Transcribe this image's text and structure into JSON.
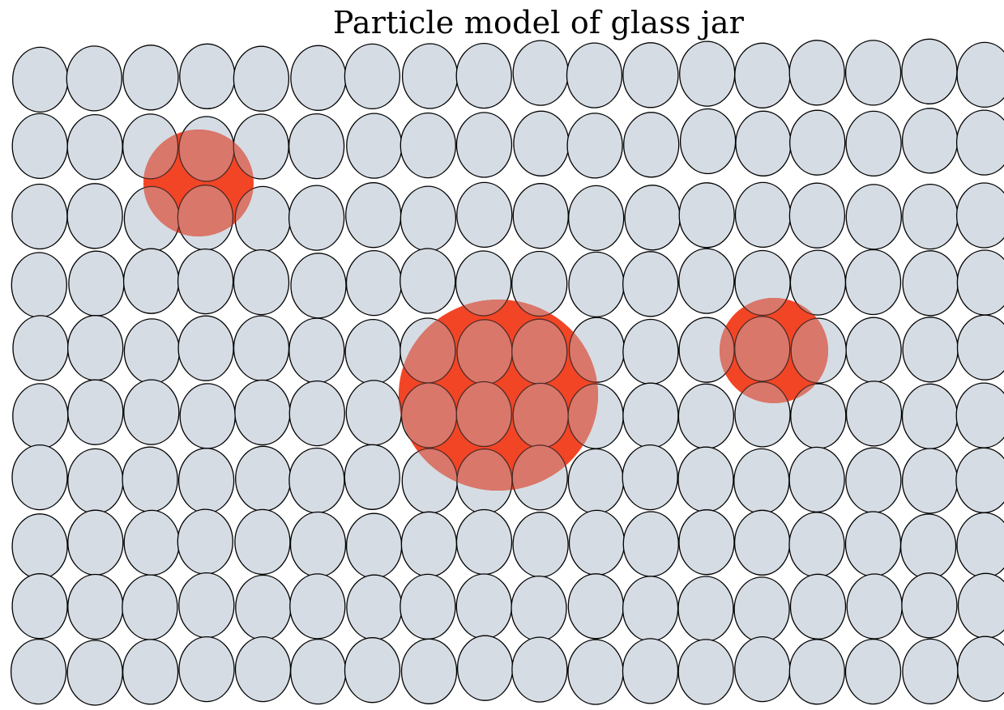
{
  "title": "Particle model of glass jar",
  "grid": {
    "rows": 10,
    "columns": 18
  },
  "colors": {
    "particle_fill": "#d5dce4",
    "particle_stroke": "#000000",
    "highlight_fill": "#ff2a00",
    "highlight_overlay": "#d9776b",
    "background": "#ffffff"
  },
  "highlight_regions": [
    {
      "id": "small-top-left",
      "label": ""
    },
    {
      "id": "large-center",
      "label": ""
    },
    {
      "id": "medium-right",
      "label": ""
    }
  ]
}
